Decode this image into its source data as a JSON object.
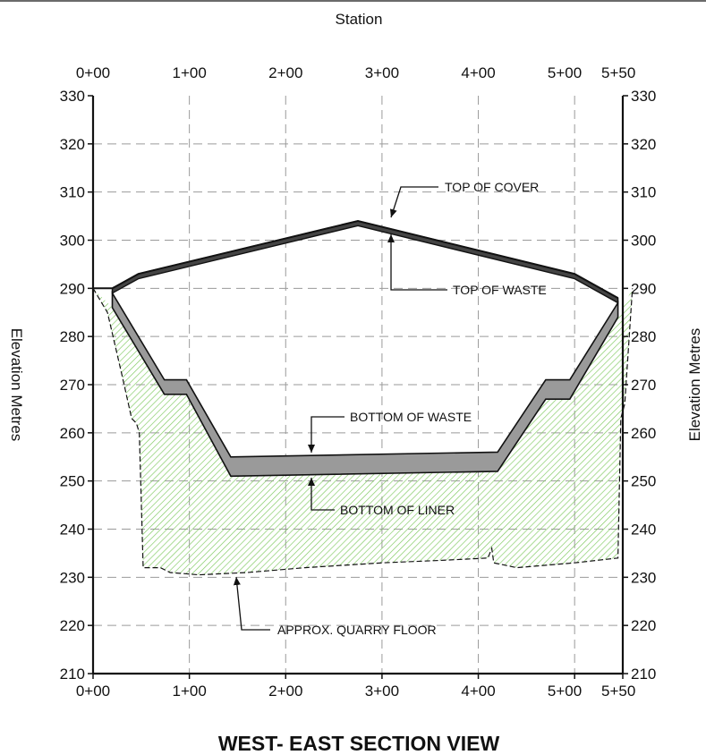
{
  "section": {
    "title": "WEST- EAST SECTION VIEW",
    "top_axis_title": "Station",
    "left_axis_title": "Elevation Metres",
    "right_axis_title": "Elevation Metres"
  },
  "axes": {
    "x_ticks": [
      {
        "value": 0,
        "label": "0+00"
      },
      {
        "value": 100,
        "label": "1+00"
      },
      {
        "value": 200,
        "label": "2+00"
      },
      {
        "value": 300,
        "label": "3+00"
      },
      {
        "value": 400,
        "label": "4+00"
      },
      {
        "value": 500,
        "label": "5+00"
      },
      {
        "value": 550,
        "label": "5+50"
      }
    ],
    "y_ticks": [
      210,
      220,
      230,
      240,
      250,
      260,
      270,
      280,
      290,
      300,
      310,
      320,
      330
    ],
    "x_range": [
      0,
      550
    ],
    "y_range": [
      210,
      330
    ],
    "grid": true
  },
  "profiles": {
    "top_of_cover": [
      [
        0,
        290
      ],
      [
        20,
        290
      ],
      [
        47,
        293
      ],
      [
        275,
        304
      ],
      [
        500,
        293
      ],
      [
        545,
        288
      ]
    ],
    "top_of_waste": [
      [
        20,
        289
      ],
      [
        47,
        292
      ],
      [
        275,
        303
      ],
      [
        500,
        292
      ],
      [
        545,
        287
      ]
    ],
    "bottom_of_waste": [
      [
        20,
        289
      ],
      [
        74,
        271
      ],
      [
        97,
        271
      ],
      [
        143,
        255
      ],
      [
        420,
        256
      ],
      [
        470,
        271
      ],
      [
        495,
        271
      ],
      [
        545,
        287
      ]
    ],
    "bottom_of_liner": [
      [
        20,
        286
      ],
      [
        74,
        268
      ],
      [
        97,
        268
      ],
      [
        143,
        251
      ],
      [
        420,
        252
      ],
      [
        470,
        267
      ],
      [
        495,
        267
      ],
      [
        545,
        284
      ]
    ],
    "quarry_floor": [
      [
        0,
        290
      ],
      [
        15,
        285
      ],
      [
        30,
        272
      ],
      [
        40,
        263
      ],
      [
        45,
        262
      ],
      [
        48,
        260
      ],
      [
        52,
        232
      ],
      [
        70,
        232
      ],
      [
        80,
        231
      ],
      [
        110,
        230.5
      ],
      [
        160,
        231
      ],
      [
        220,
        232
      ],
      [
        300,
        233
      ],
      [
        360,
        233.5
      ],
      [
        410,
        234
      ],
      [
        414,
        236
      ],
      [
        416,
        233
      ],
      [
        440,
        232
      ],
      [
        500,
        233
      ],
      [
        545,
        234
      ],
      [
        548,
        263
      ],
      [
        552,
        266
      ],
      [
        560,
        290
      ]
    ]
  },
  "callouts": [
    {
      "id": "top-of-cover",
      "text": "TOP OF COVER"
    },
    {
      "id": "top-of-waste",
      "text": "TOP OF WASTE"
    },
    {
      "id": "bottom-of-waste",
      "text": "BOTTOM OF WASTE"
    },
    {
      "id": "bottom-of-liner",
      "text": "BOTTOM OF LINER"
    },
    {
      "id": "quarry-floor",
      "text": "APPROX. QUARRY FLOOR"
    }
  ],
  "colors": {
    "hatch": "#7dc95e",
    "liner_fill": "#9a9a9a",
    "outline": "#111111",
    "grid": "#9a9a9a"
  }
}
